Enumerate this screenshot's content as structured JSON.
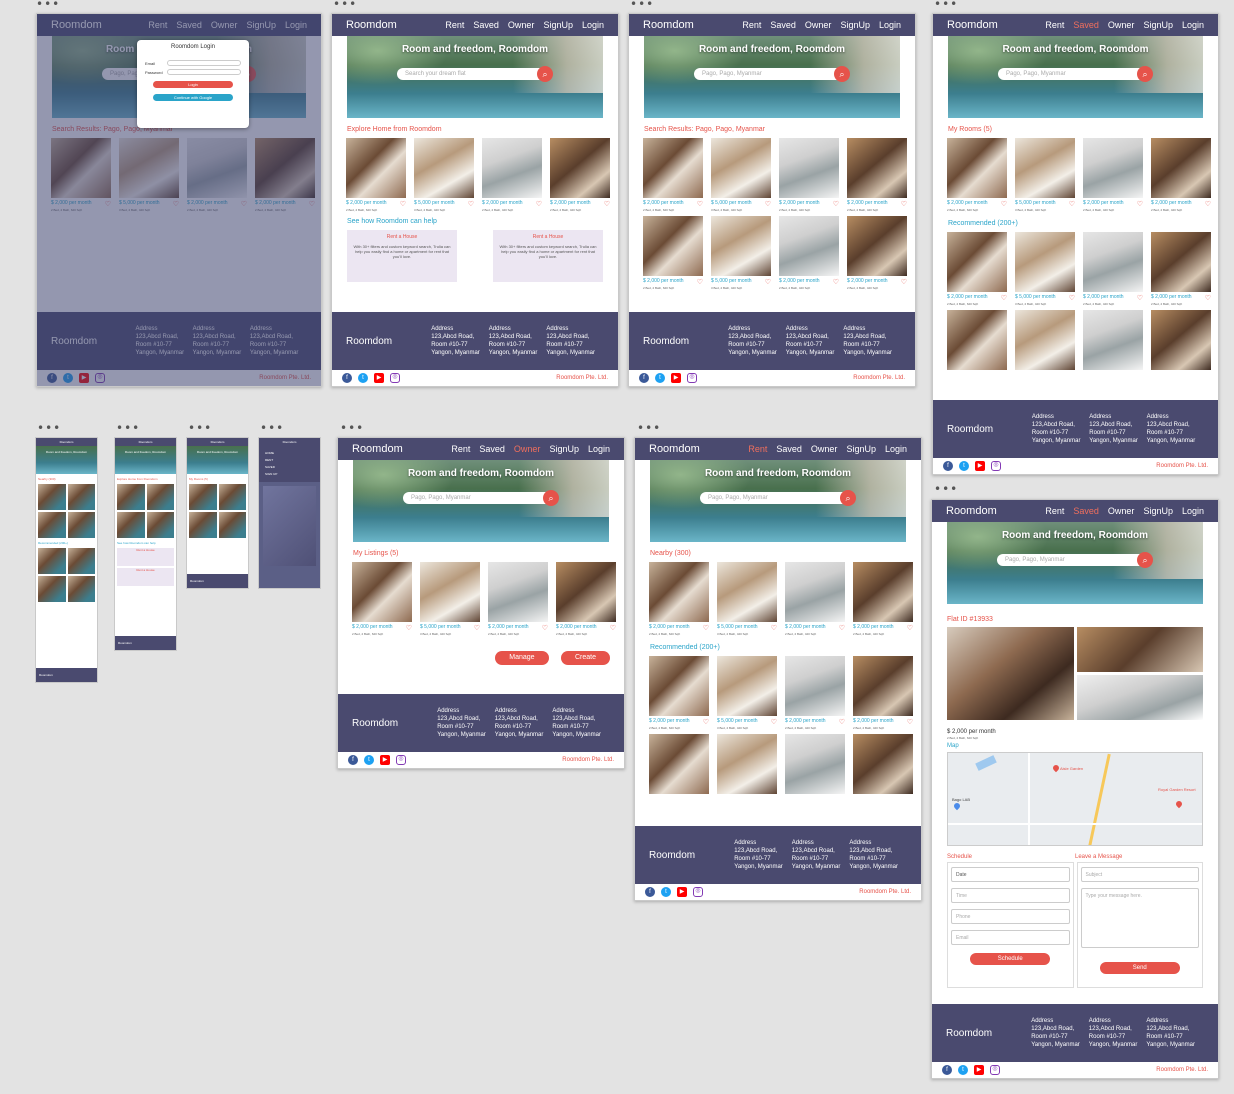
{
  "nav": {
    "brand": "Roomdom",
    "rent": "Rent",
    "saved": "Saved",
    "owner": "Owner",
    "signup": "SignUp",
    "login": "Login"
  },
  "hero": {
    "title": "Room and freedom, Roomdom",
    "placeholder_default": "Search your dream flat",
    "placeholder_search": "Pago, Pago, Myanmar"
  },
  "sections": {
    "search_results": "Search Results: Pago, Pago, Myanmar",
    "explore": "Explore Home from Roomdom",
    "how_help": "See how Roomdom can help",
    "my_rooms": "My Rooms (5)",
    "recommended": "Recommended (200+)",
    "my_listings": "My Listings (5)",
    "nearby": "Nearby (300)",
    "flat_id": "Flat ID #13933",
    "map": "Map",
    "schedule": "Schedule",
    "leave_message": "Leave a Message"
  },
  "cards": [
    {
      "price": "$ 2,000 per month",
      "meta": "2 Bed, 2 Bath, 620 Sqft"
    },
    {
      "price": "$ 5,000 per month",
      "meta": "3 Bed, 2 Bath, 420 Sqft"
    },
    {
      "price": "$ 2,000 per month",
      "meta": "2 Bed, 2 Bath, 420 Sqft"
    },
    {
      "price": "$ 2,000 per month",
      "meta": "2 Bed, 2 Bath, 420 Sqft"
    }
  ],
  "help": {
    "rent_title": "Rent a House",
    "rent_text": "With 30+ filters and custom keyword search, Trulia can help you easily find a home or apartment for rent that you'll love."
  },
  "login": {
    "title": "Roomdom Login",
    "email": "Email",
    "password": "Password",
    "login_btn": "Login",
    "google_btn": "Continue with Google"
  },
  "listing_actions": {
    "manage": "Manage",
    "create": "Create"
  },
  "detail": {
    "price": "$ 2,000 per month",
    "meta": "2 Bed, 2 Bath, 620 Sqft",
    "map_labels": [
      "Aisle Garden",
      "Royal Garden Resort",
      "Bago LAB"
    ],
    "schedule_fields": [
      "Date",
      "Time",
      "Phone",
      "Email"
    ],
    "schedule_btn": "Schedule",
    "message_fields": [
      "Subject",
      "Type your message here."
    ],
    "send_btn": "Send"
  },
  "footer": {
    "brand": "Roomdom",
    "address": [
      "Address",
      "123,Abcd Road,",
      "Room #10-77",
      "Yangon, Myanmar"
    ],
    "copyright": "Roomdom Pte. Ltd."
  },
  "mini": {
    "nav_title": "Roomdom",
    "menu": [
      "HOME",
      "RENT",
      "SAVED",
      "SIGN UP"
    ]
  },
  "colors": {
    "nav_bg": "#4a4a6f",
    "accent": "#e6534a",
    "link": "#2aa4c9"
  }
}
